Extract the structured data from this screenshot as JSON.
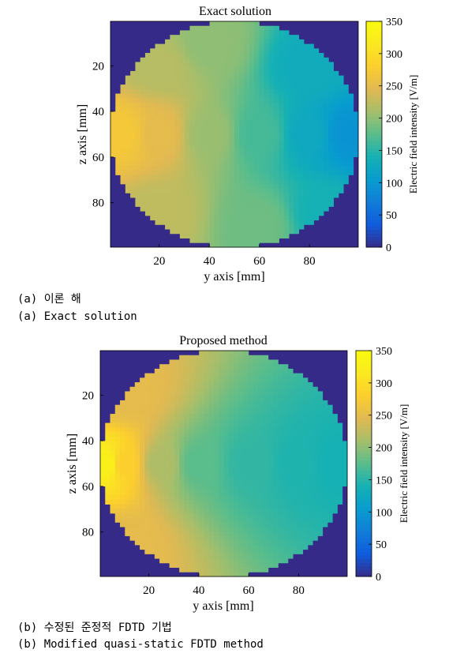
{
  "chart_data": [
    {
      "type": "heatmap",
      "title": "Exact solution",
      "xlabel": "y axis [mm]",
      "ylabel": "z axis [mm]",
      "xlim": [
        1,
        99
      ],
      "ylim": [
        1,
        99
      ],
      "xticks": [
        20,
        40,
        60,
        80
      ],
      "yticks": [
        20,
        40,
        60,
        80
      ],
      "colorbar": {
        "label": "Electric field intensity [V/m]",
        "range": [
          0,
          350
        ],
        "ticks": [
          0,
          50,
          100,
          150,
          200,
          250,
          300,
          350
        ],
        "colormap": "parula"
      },
      "outside_value": 0,
      "region": "disk",
      "samples": [
        {
          "y": 5,
          "z": 50,
          "value": 270
        },
        {
          "y": 20,
          "z": 50,
          "value": 250
        },
        {
          "y": 40,
          "z": 50,
          "value": 205
        },
        {
          "y": 60,
          "z": 50,
          "value": 165
        },
        {
          "y": 80,
          "z": 50,
          "value": 125
        },
        {
          "y": 95,
          "z": 50,
          "value": 95
        },
        {
          "y": 20,
          "z": 20,
          "value": 220
        },
        {
          "y": 40,
          "z": 10,
          "value": 200
        },
        {
          "y": 80,
          "z": 20,
          "value": 130
        },
        {
          "y": 20,
          "z": 85,
          "value": 225
        },
        {
          "y": 60,
          "z": 90,
          "value": 185
        },
        {
          "y": 85,
          "z": 85,
          "value": 140
        }
      ]
    },
    {
      "type": "heatmap",
      "title": "Proposed method",
      "xlabel": "y axis [mm]",
      "ylabel": "z axis [mm]",
      "xlim": [
        1,
        99
      ],
      "ylim": [
        1,
        99
      ],
      "xticks": [
        20,
        40,
        60,
        80
      ],
      "yticks": [
        20,
        40,
        60,
        80
      ],
      "colorbar": {
        "label": "Electric field intensity [V/m]",
        "range": [
          0,
          350
        ],
        "ticks": [
          0,
          50,
          100,
          150,
          200,
          250,
          300,
          350
        ],
        "colormap": "parula"
      },
      "outside_value": 0,
      "region": "disk",
      "samples": [
        {
          "y": 3,
          "z": 50,
          "value": 330
        },
        {
          "y": 10,
          "z": 50,
          "value": 280
        },
        {
          "y": 25,
          "z": 50,
          "value": 215
        },
        {
          "y": 40,
          "z": 50,
          "value": 175
        },
        {
          "y": 60,
          "z": 50,
          "value": 155
        },
        {
          "y": 80,
          "z": 50,
          "value": 145
        },
        {
          "y": 95,
          "z": 50,
          "value": 140
        },
        {
          "y": 10,
          "z": 20,
          "value": 250
        },
        {
          "y": 10,
          "z": 85,
          "value": 250
        }
      ]
    }
  ],
  "captions": {
    "a_korean": "(a) 이론 해",
    "a_english": "(a) Exact solution",
    "b_korean": "(b) 수정된 준정적 FDTD 기법",
    "b_english": "(b) Modified quasi-static FDTD method"
  }
}
